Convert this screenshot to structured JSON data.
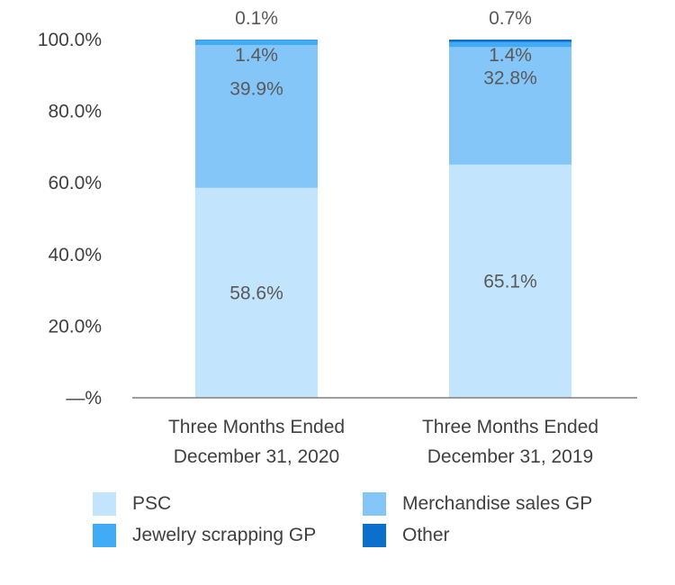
{
  "chart_data": {
    "type": "bar",
    "stacked": true,
    "categories": [
      [
        "Three Months Ended",
        "December 31, 2020"
      ],
      [
        "Three Months Ended",
        "December 31, 2019"
      ]
    ],
    "series": [
      {
        "name": "PSC",
        "values": [
          58.6,
          65.1
        ],
        "labels": [
          "58.6%",
          "65.1%"
        ],
        "color": "#c3e4fd"
      },
      {
        "name": "Merchandise sales GP",
        "values": [
          39.9,
          32.8
        ],
        "labels": [
          "39.9%",
          "32.8%"
        ],
        "color": "#85c6f9"
      },
      {
        "name": "Jewelry scrapping GP",
        "values": [
          1.4,
          1.4
        ],
        "labels": [
          "1.4%",
          "1.4%"
        ],
        "color": "#41abf5"
      },
      {
        "name": "Other",
        "values": [
          0.1,
          0.7
        ],
        "labels": [
          "0.1%",
          "0.7%"
        ],
        "color": "#0d6fcc"
      }
    ],
    "y_ticks": [
      {
        "value": 0,
        "label": "—%"
      },
      {
        "value": 20,
        "label": "20.0%"
      },
      {
        "value": 40,
        "label": "40.0%"
      },
      {
        "value": 60,
        "label": "60.0%"
      },
      {
        "value": 80,
        "label": "80.0%"
      },
      {
        "value": 100,
        "label": "100.0%"
      }
    ],
    "ylim": [
      0,
      100
    ],
    "title": "",
    "xlabel": "",
    "ylabel": "",
    "grid": false,
    "legend_position": "bottom"
  },
  "legend": {
    "items": [
      {
        "label": "PSC",
        "color": "#c3e4fd"
      },
      {
        "label": "Merchandise sales GP",
        "color": "#85c6f9"
      },
      {
        "label": "Jewelry scrapping GP",
        "color": "#41abf5"
      },
      {
        "label": "Other",
        "color": "#0d6fcc"
      }
    ]
  }
}
